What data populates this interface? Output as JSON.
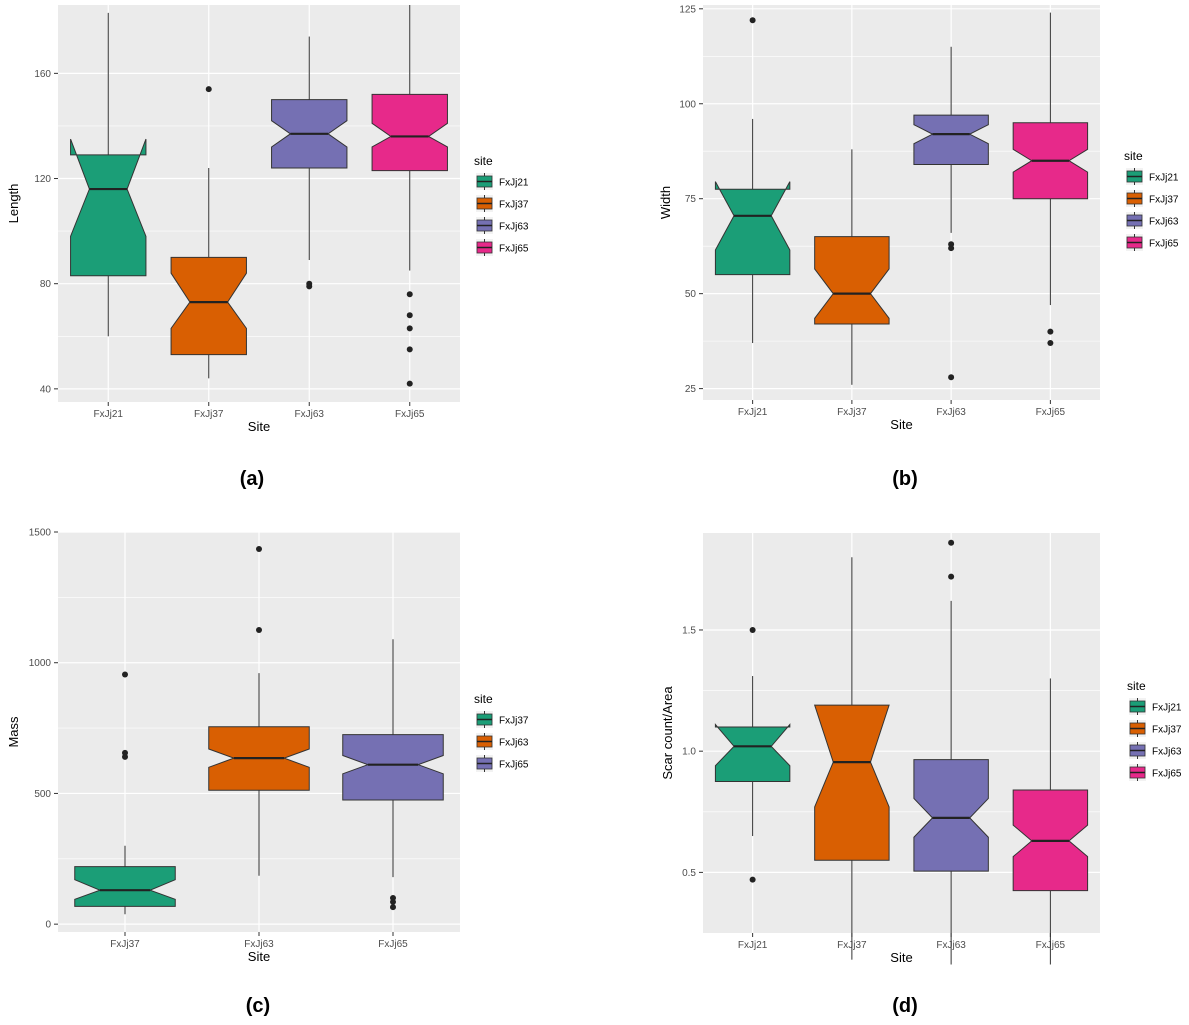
{
  "colors": {
    "panel_bg": "#ebebeb",
    "grid": "#ffffff",
    "teal": "#1b9e77",
    "orange": "#d95f02",
    "purple": "#7570b3",
    "pink": "#e7298a"
  },
  "chart_data": [
    {
      "type": "boxplot",
      "panel": "(a)",
      "xlabel": "Site",
      "ylabel": "Length",
      "ylim": [
        35,
        186
      ],
      "yticks": [
        40,
        80,
        120,
        160
      ],
      "legend_title": "site",
      "legend_placement": "right",
      "grid": true,
      "notched": true,
      "categories": [
        "FxJj21",
        "FxJj37",
        "FxJj63",
        "FxJj65"
      ],
      "boxes": [
        {
          "name": "FxJj21",
          "color": "#1b9e77",
          "whisker_low": 60,
          "q1": 83,
          "median": 116,
          "q3": 129,
          "whisker_high": 183,
          "notch_low": 98,
          "notch_high": 135,
          "outliers": []
        },
        {
          "name": "FxJj37",
          "color": "#d95f02",
          "whisker_low": 44,
          "q1": 53,
          "median": 73,
          "q3": 90,
          "whisker_high": 124,
          "notch_low": 63,
          "notch_high": 84,
          "outliers": [
            154
          ]
        },
        {
          "name": "FxJj63",
          "color": "#7570b3",
          "whisker_low": 89,
          "q1": 124,
          "median": 137,
          "q3": 150,
          "whisker_high": 174,
          "notch_low": 132,
          "notch_high": 142,
          "outliers": [
            79,
            80
          ]
        },
        {
          "name": "FxJj65",
          "color": "#e7298a",
          "whisker_low": 85,
          "q1": 123,
          "median": 136,
          "q3": 152,
          "whisker_high": 186,
          "notch_low": 132,
          "notch_high": 141,
          "outliers": [
            76,
            68,
            63,
            55,
            42
          ]
        }
      ]
    },
    {
      "type": "boxplot",
      "panel": "(b)",
      "xlabel": "Site",
      "ylabel": "Width",
      "ylim": [
        22,
        126
      ],
      "yticks": [
        25,
        50,
        75,
        100,
        125
      ],
      "legend_title": "site",
      "legend_placement": "right",
      "grid": true,
      "notched": true,
      "categories": [
        "FxJj21",
        "FxJj37",
        "FxJj63",
        "FxJj65"
      ],
      "boxes": [
        {
          "name": "FxJj21",
          "color": "#1b9e77",
          "whisker_low": 37,
          "q1": 55,
          "median": 70.5,
          "q3": 77.5,
          "whisker_high": 96,
          "notch_low": 61.5,
          "notch_high": 79.5,
          "outliers": [
            122
          ]
        },
        {
          "name": "FxJj37",
          "color": "#d95f02",
          "whisker_low": 26,
          "q1": 42,
          "median": 50,
          "q3": 65,
          "whisker_high": 88,
          "notch_low": 43.5,
          "notch_high": 56.5,
          "outliers": []
        },
        {
          "name": "FxJj63",
          "color": "#7570b3",
          "whisker_low": 66,
          "q1": 84,
          "median": 92,
          "q3": 97,
          "whisker_high": 115,
          "notch_low": 89.5,
          "notch_high": 94.5,
          "outliers": [
            63,
            62,
            28
          ]
        },
        {
          "name": "FxJj65",
          "color": "#e7298a",
          "whisker_low": 47,
          "q1": 75,
          "median": 85,
          "q3": 95,
          "whisker_high": 124,
          "notch_low": 82,
          "notch_high": 88,
          "outliers": [
            40,
            37
          ]
        }
      ]
    },
    {
      "type": "boxplot",
      "panel": "(c)",
      "xlabel": "Site",
      "ylabel": "Mass",
      "ylim": [
        -30,
        1500
      ],
      "yticks": [
        0,
        500,
        1000,
        1500
      ],
      "legend_title": "site",
      "legend_placement": "right",
      "grid": true,
      "notched": true,
      "categories": [
        "FxJj37",
        "FxJj63",
        "FxJj65"
      ],
      "boxes": [
        {
          "name": "FxJj37",
          "color": "#1b9e77",
          "whisker_low": 38,
          "q1": 68,
          "median": 130,
          "q3": 220,
          "whisker_high": 300,
          "notch_low": 95,
          "notch_high": 170,
          "outliers": [
            955,
            655,
            640
          ]
        },
        {
          "name": "FxJj63",
          "color": "#d95f02",
          "whisker_low": 185,
          "q1": 512,
          "median": 635,
          "q3": 755,
          "whisker_high": 960,
          "notch_low": 600,
          "notch_high": 670,
          "outliers": [
            1125,
            1435
          ]
        },
        {
          "name": "FxJj65",
          "color": "#7570b3",
          "whisker_low": 180,
          "q1": 475,
          "median": 610,
          "q3": 725,
          "whisker_high": 1090,
          "notch_low": 575,
          "notch_high": 645,
          "outliers": [
            100,
            85,
            65
          ]
        }
      ]
    },
    {
      "type": "boxplot",
      "panel": "(d)",
      "xlabel": "Site",
      "ylabel": "Scar count/Area",
      "ylim": [
        0.25,
        1.9
      ],
      "yticks": [
        0.5,
        1.0,
        1.5
      ],
      "ytick_labels": [
        "0.5",
        "1.0",
        "1.5"
      ],
      "legend_title": "site",
      "legend_placement": "right",
      "grid": true,
      "notched": true,
      "categories": [
        "FxJj21",
        "FxJj37",
        "FxJj63",
        "FxJj65"
      ],
      "boxes": [
        {
          "name": "FxJj21",
          "color": "#1b9e77",
          "whisker_low": 0.65,
          "q1": 0.875,
          "median": 1.02,
          "q3": 1.1,
          "whisker_high": 1.31,
          "notch_low": 0.94,
          "notch_high": 1.11,
          "outliers": [
            1.5,
            0.47
          ]
        },
        {
          "name": "FxJj37",
          "color": "#d95f02",
          "whisker_low": 0.14,
          "q1": 0.55,
          "median": 0.955,
          "q3": 1.19,
          "whisker_high": 1.8,
          "notch_low": 0.77,
          "notch_high": 1.19,
          "outliers": []
        },
        {
          "name": "FxJj63",
          "color": "#7570b3",
          "whisker_low": 0.12,
          "q1": 0.505,
          "median": 0.725,
          "q3": 0.965,
          "whisker_high": 1.62,
          "notch_low": 0.645,
          "notch_high": 0.805,
          "outliers": [
            1.72,
            1.86
          ]
        },
        {
          "name": "FxJj65",
          "color": "#e7298a",
          "whisker_low": 0.12,
          "q1": 0.425,
          "median": 0.63,
          "q3": 0.84,
          "whisker_high": 1.3,
          "notch_low": 0.565,
          "notch_high": 0.695,
          "outliers": []
        }
      ]
    }
  ]
}
